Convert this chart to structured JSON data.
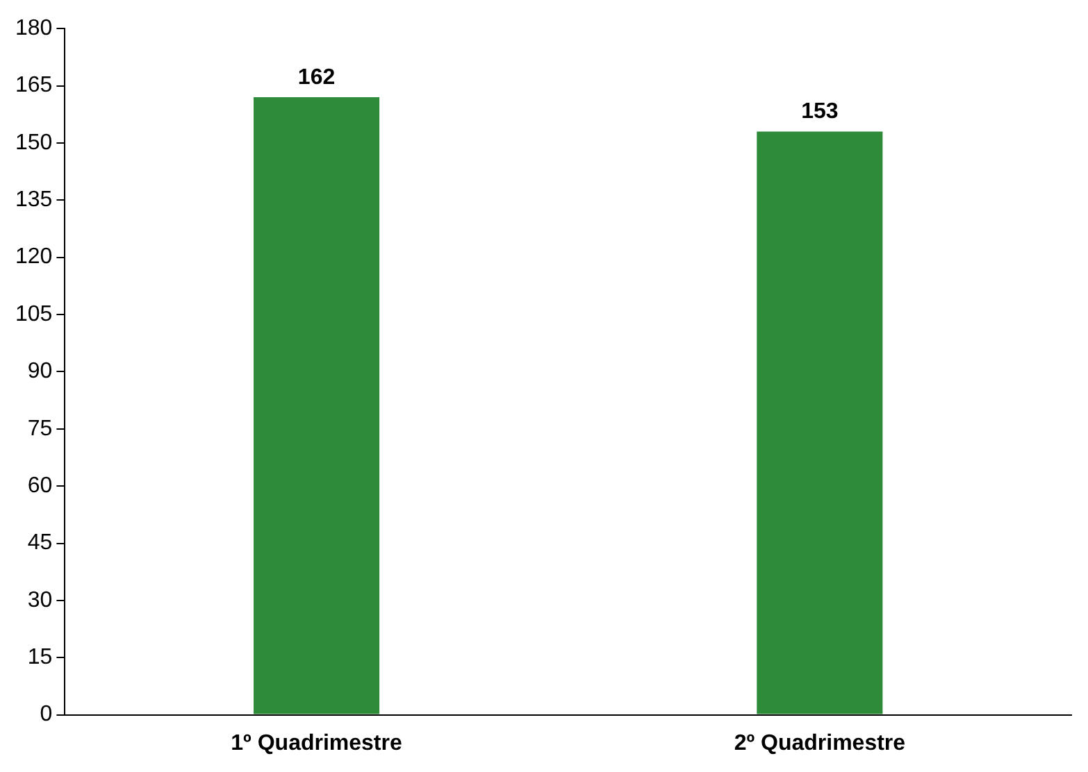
{
  "chart_data": {
    "type": "bar",
    "categories": [
      "1º Quadrimestre",
      "2º Quadrimestre"
    ],
    "values": [
      162,
      153
    ],
    "color": "#2e8b3a",
    "ylim": [
      0,
      180
    ],
    "yticks": [
      0,
      15,
      30,
      45,
      60,
      75,
      90,
      105,
      120,
      135,
      150,
      165,
      180
    ],
    "grid": false,
    "data_labels": true,
    "legend": false
  }
}
